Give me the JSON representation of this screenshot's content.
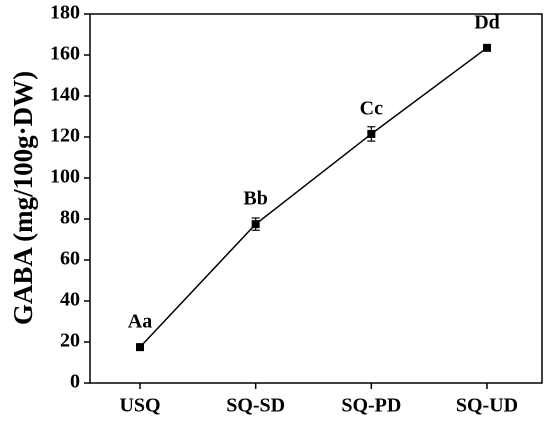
{
  "chart_data": {
    "type": "line",
    "y_label": "GABA (mg/100g·DW)",
    "categories": [
      "USQ",
      "SQ-SD",
      "SQ-PD",
      "SQ-UD"
    ],
    "values": [
      17.5,
      77.5,
      121.5,
      163.5
    ],
    "errors": [
      1,
      3,
      3.5,
      1
    ],
    "point_labels": [
      "Aa",
      "Bb",
      "Cc",
      "Dd"
    ],
    "color": "#000000",
    "ylim": [
      0,
      180
    ],
    "yticks": [
      0,
      20,
      40,
      60,
      80,
      100,
      120,
      140,
      160,
      180
    ]
  }
}
